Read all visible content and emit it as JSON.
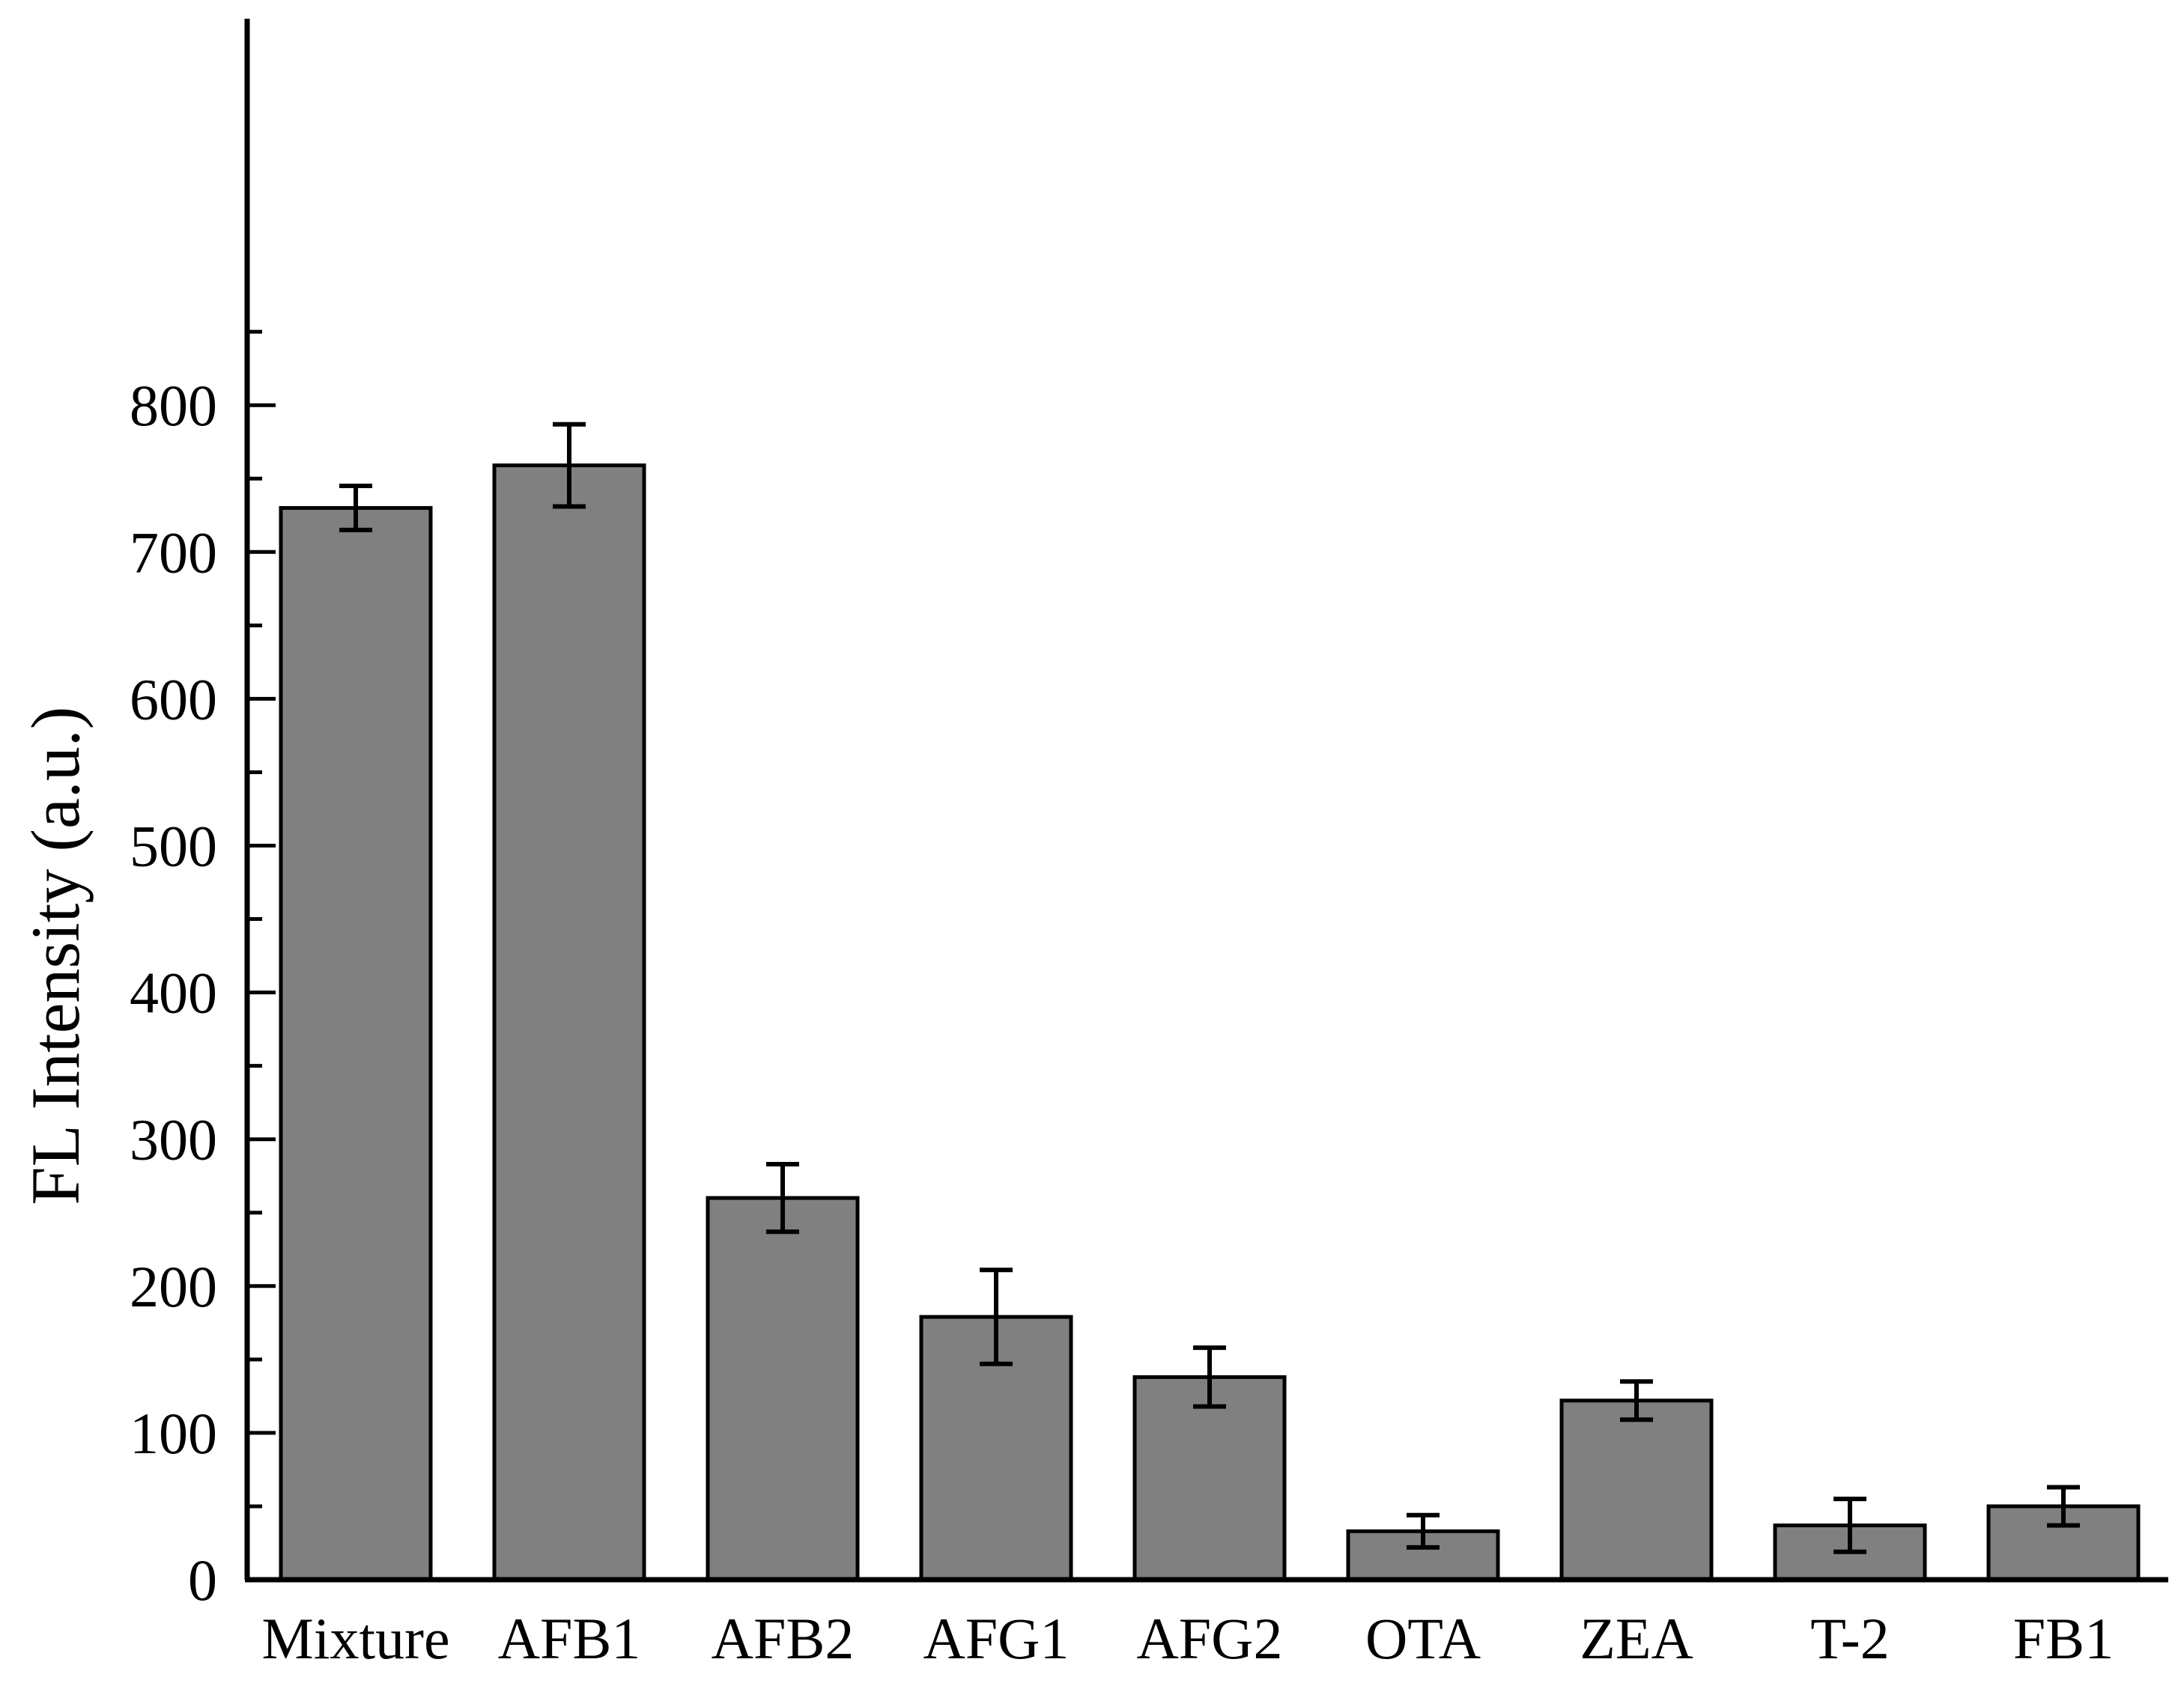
{
  "chart_data": {
    "type": "bar",
    "categories": [
      "Mixture",
      "AFB1",
      "AFB2",
      "AFG1",
      "AFG2",
      "OTA",
      "ZEA",
      "T-2",
      "FB1"
    ],
    "values": [
      730,
      759,
      260,
      179,
      138,
      33,
      122,
      37,
      50
    ],
    "errors": [
      15,
      28,
      23,
      32,
      20,
      11,
      13,
      18,
      13
    ],
    "title": "",
    "xlabel": "",
    "ylabel": "FL Intensity (a.u.)",
    "ylim": [
      0,
      850
    ],
    "yticks": [
      0,
      100,
      200,
      300,
      400,
      500,
      600,
      700,
      800
    ],
    "grid": false,
    "colors": {
      "bar": "#808080",
      "stroke": "#000000"
    }
  }
}
